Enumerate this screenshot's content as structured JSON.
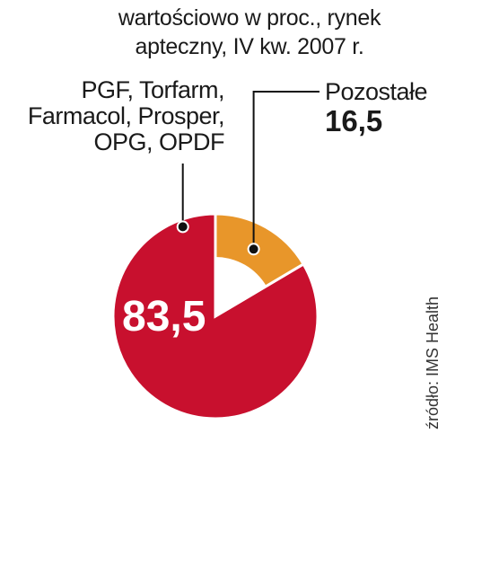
{
  "chart_data": {
    "type": "pie",
    "title_lines": [
      "wartościowo w proc., rynek",
      "apteczny, IV kw. 2007 r."
    ],
    "slices": [
      {
        "label_lines": [
          "PGF, Torfarm,",
          "Farmacol, Prosper,",
          "OPG, OPDF"
        ],
        "value": 83.5,
        "value_label": "83,5",
        "color": "#c8102e"
      },
      {
        "label_lines": [
          "Pozostałe"
        ],
        "value": 16.5,
        "value_label": "16,5",
        "color": "#e8962a"
      }
    ],
    "source": "źródło: IMS Health"
  }
}
